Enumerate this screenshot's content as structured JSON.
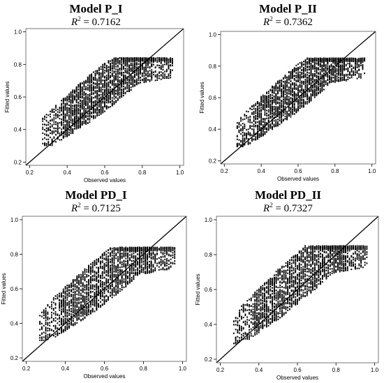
{
  "chart_data": [
    {
      "type": "scatter",
      "title": "Model P_I",
      "r2_symbol": "R",
      "r2_sup": "2",
      "r2_value": "= 0.7162",
      "xlabel": "Observed values",
      "ylabel": "Fitted values",
      "xlim": [
        0.18,
        1.02
      ],
      "ylim": [
        0.18,
        1.02
      ],
      "xticks": [
        "0.2",
        "0.4",
        "0.6",
        "0.8",
        "1.0"
      ],
      "yticks": [
        "0.2",
        "0.4",
        "0.6",
        "0.8",
        "1.0"
      ],
      "reference_line": "y = x",
      "x_range": [
        0.27,
        0.96
      ],
      "fitted_range": [
        0.3,
        0.84
      ]
    },
    {
      "type": "scatter",
      "title": "Model P_II",
      "r2_symbol": "R",
      "r2_sup": "2",
      "r2_value": "= 0.7362",
      "xlabel": "Observed values",
      "ylabel": "Fitted values",
      "xlim": [
        0.18,
        1.02
      ],
      "ylim": [
        0.18,
        1.02
      ],
      "xticks": [
        "0.2",
        "0.4",
        "0.6",
        "0.8",
        "1.0"
      ],
      "yticks": [
        "0.2",
        "0.4",
        "0.6",
        "0.8",
        "1.0"
      ],
      "reference_line": "y = x",
      "x_range": [
        0.27,
        0.96
      ],
      "fitted_range": [
        0.29,
        0.85
      ]
    },
    {
      "type": "scatter",
      "title": "Model PD_I",
      "r2_symbol": "R",
      "r2_sup": "2",
      "r2_value": "= 0.7125",
      "xlabel": "Observed values",
      "ylabel": "Fitted values",
      "xlim": [
        0.18,
        1.02
      ],
      "ylim": [
        0.18,
        1.02
      ],
      "xticks": [
        "0.2",
        "0.4",
        "0.6",
        "0.8",
        "1.0"
      ],
      "yticks": [
        "0.2",
        "0.4",
        "0.6",
        "0.8",
        "1.0"
      ],
      "reference_line": "y = x",
      "x_range": [
        0.27,
        0.96
      ],
      "fitted_range": [
        0.3,
        0.84
      ]
    },
    {
      "type": "scatter",
      "title": "Model PD_II",
      "r2_symbol": "R",
      "r2_sup": "2",
      "r2_value": "= 0.7327",
      "xlabel": "Observed values",
      "ylabel": "Fitted values",
      "xlim": [
        0.18,
        1.02
      ],
      "ylim": [
        0.18,
        1.02
      ],
      "xticks": [
        "0.2",
        "0.4",
        "0.6",
        "0.8",
        "1.0"
      ],
      "yticks": [
        "0.2",
        "0.4",
        "0.6",
        "0.8",
        "1.0"
      ],
      "reference_line": "y = x",
      "x_range": [
        0.27,
        0.96
      ],
      "fitted_range": [
        0.29,
        0.85
      ]
    }
  ]
}
